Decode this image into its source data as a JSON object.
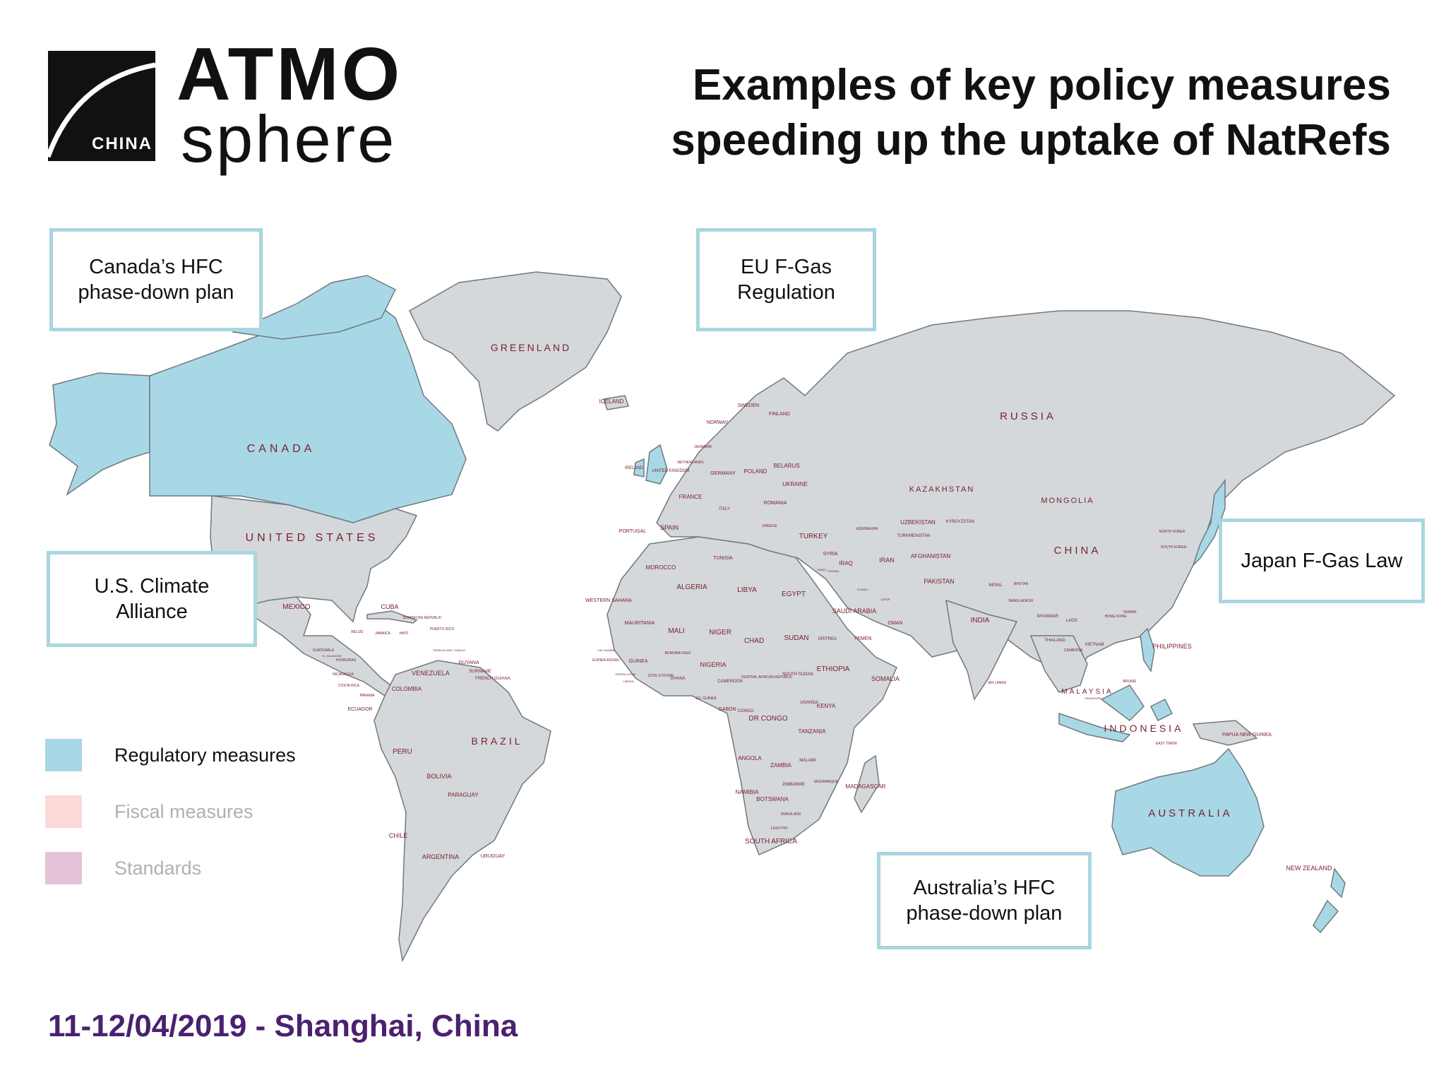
{
  "logo": {
    "badge_text": "CHINA",
    "word_top": "ATMO",
    "word_bottom": "sphere"
  },
  "title": {
    "line1": "Examples of key policy measures",
    "line2": "speeding up the uptake of NatRefs"
  },
  "callouts": {
    "canada": "Canada’s HFC\nphase-down plan",
    "eu": "EU F-Gas\nRegulation",
    "us": "U.S. Climate\nAlliance",
    "japan": "Japan F-Gas Law",
    "australia": "Australia’s HFC\nphase-down plan"
  },
  "legend": [
    {
      "label": "Regulatory measures",
      "color": "#a8d8e6",
      "text_color": "#111111"
    },
    {
      "label": "Fiscal measures",
      "color": "#fcd9d9",
      "text_color": "#b0b0b0"
    },
    {
      "label": "Standards",
      "color": "#e6c2d8",
      "text_color": "#b0b0b0"
    }
  ],
  "colors": {
    "regulatory": "#a8d8e6",
    "land": "#d4d8da",
    "border": "#707880",
    "callout_border": "#a9d6e0"
  },
  "country_labels": [
    "GREENLAND",
    "ICELAND",
    "CANADA",
    "UNITED STATES",
    "MEXICO",
    "CUBA",
    "DOMINICAN REPUBLIC",
    "PUERTO RICO",
    "JAMAICA",
    "HAITI",
    "BELIZE",
    "GUATEMALA",
    "EL SALVADOR",
    "HONDURAS",
    "NICARAGUA",
    "COSTA RICA",
    "PANAMA",
    "TRINIDAD AND TOBAGO",
    "VENEZUELA",
    "GUYANA",
    "SURINAME",
    "FRENCH GUIANA",
    "COLOMBIA",
    "ECUADOR",
    "PERU",
    "BRAZIL",
    "BOLIVIA",
    "PARAGUAY",
    "CHILE",
    "ARGENTINA",
    "URUGUAY",
    "IRELAND",
    "UNITED KINGDOM",
    "NETHERLANDS",
    "DENMARK",
    "NORWAY",
    "SWEDEN",
    "FINLAND",
    "GERMANY",
    "POLAND",
    "BELARUS",
    "UKRAINE",
    "FRANCE",
    "ITALY",
    "ROMANIA",
    "SPAIN",
    "PORTUGAL",
    "GREECE",
    "TURKEY",
    "SYRIA",
    "IRAQ",
    "IRAN",
    "SAUDI ARABIA",
    "YEMEN",
    "OMAN",
    "QATAR",
    "KUWAIT",
    "JORDAN",
    "ISRAEL",
    "MOROCCO",
    "WESTERN SAHARA",
    "ALGERIA",
    "TUNISIA",
    "LIBYA",
    "EGYPT",
    "MAURITANIA",
    "MALI",
    "NIGER",
    "CHAD",
    "SUDAN",
    "ERITREA",
    "ETHIOPIA",
    "SOMALIA",
    "SOUTH SUDAN",
    "CENTRAL AFRICAN REPUBLIC",
    "NIGERIA",
    "BURKINA FASO",
    "GHANA",
    "COTE D'IVOIRE",
    "GUINEA",
    "GUINEA-BISSAU",
    "THE GAMBIA",
    "SIERRA LEONE",
    "LIBERIA",
    "CAMEROON",
    "EQ. GUINEA",
    "GABON",
    "CONGO",
    "DR CONGO",
    "UGANDA",
    "KENYA",
    "TANZANIA",
    "ANGOLA",
    "ZAMBIA",
    "MALAWI",
    "MOZAMBIQUE",
    "ZIMBABWE",
    "NAMIBIA",
    "BOTSWANA",
    "SWAZILAND",
    "LESOTHO",
    "SOUTH AFRICA",
    "MADAGASCAR",
    "RUSSIA",
    "KAZAKHSTAN",
    "UZBEKISTAN",
    "TURKMENISTAN",
    "KYRGYZSTAN",
    "AFGHANISTAN",
    "PAKISTAN",
    "AZERBAIJAN",
    "MONGOLIA",
    "CHINA",
    "NORTH KOREA",
    "SOUTH KOREA",
    "NEPAL",
    "BHUTAN",
    "BANGLADESH",
    "INDIA",
    "SRI LANKA",
    "MYANMAR",
    "LAOS",
    "THAILAND",
    "VIETNAM",
    "CAMBODIA",
    "TAIWAN",
    "HONG KONG",
    "PHILIPPINES",
    "MALAYSIA",
    "BRUNEI",
    "SINGAPORE",
    "INDONESIA",
    "EAST TIMOR",
    "PAPUA NEW GUINEA",
    "AUSTRALIA",
    "NEW ZEALAND"
  ],
  "footer": {
    "date_location": "11-12/04/2019 - Shanghai, China"
  }
}
